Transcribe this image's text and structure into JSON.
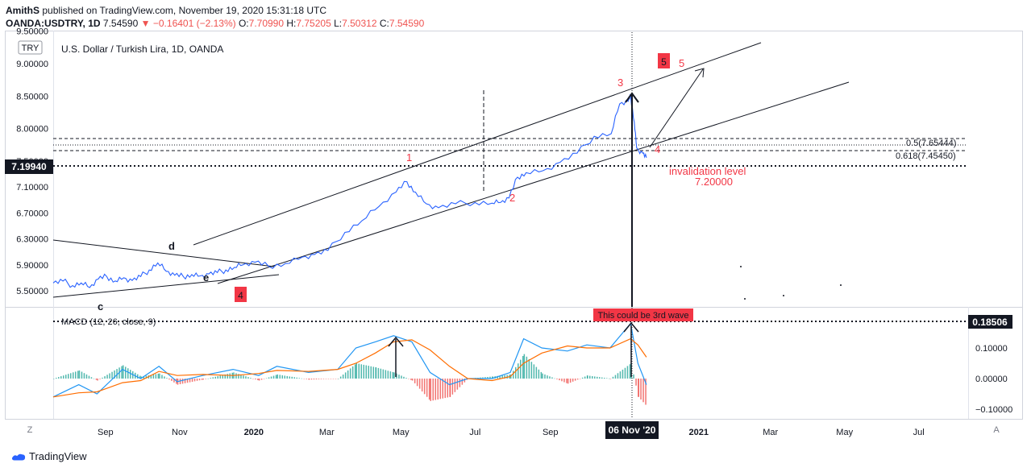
{
  "header": {
    "author": "AmithS",
    "published": "published on TradingView.com, November 19, 2020 15:31:18 UTC",
    "symbol": "OANDA:USDTRY, 1D",
    "last": "7.54590",
    "change": "−0.16401 (−2.13%)",
    "o_label": "O:",
    "o": "7.70990",
    "h_label": "H:",
    "h": "7.75205",
    "l_label": "L:",
    "l": "7.50312",
    "c_label": "C:",
    "c": "7.54590"
  },
  "chart_title": "U.S. Dollar / Turkish Lira, 1D, OANDA",
  "currency_badge": "TRY",
  "footer_brand": "TradingView",
  "colors": {
    "price_line": "#2962ff",
    "macd": "#2196f3",
    "signal": "#ff6d00",
    "wave": "#f23645",
    "hist_up": "#26a69a",
    "hist_dn": "#ef5350"
  },
  "chart_data": [
    {
      "type": "line",
      "series": [
        {
          "name": "",
          "values": []
        }
      ],
      "ylim": [
        5.4,
        9.5
      ],
      "price_ticks": [
        "9.50000",
        "9.00000",
        "8.50000",
        "8.00000",
        "7.50000",
        "7.10000",
        "6.70000",
        "6.30000",
        "5.90000",
        "5.50000"
      ],
      "x_ticks": [
        "Sep",
        "Nov",
        "2020",
        "Mar",
        "May",
        "Jul",
        "Sep",
        "2021",
        "Mar",
        "May",
        "Jul"
      ],
      "crosshair_date": "06 Nov '20",
      "last_price_label": "7.19940",
      "fib_labels": [
        "0.5(7.65444)",
        "0.618(7.45450)"
      ],
      "wave_labels": [
        "1",
        "2",
        "3",
        "4",
        "5"
      ],
      "wave_boxes": [
        "5",
        "4"
      ],
      "triangle_labels": [
        "d",
        "e",
        "c"
      ],
      "invalidation_text": "invalidation level",
      "invalidation_value": "7.20000",
      "points": [
        [
          "2019-07-20",
          5.62
        ],
        [
          "2019-07-28",
          5.65
        ],
        [
          "2019-08-05",
          5.58
        ],
        [
          "2019-08-12",
          5.62
        ],
        [
          "2019-08-19",
          5.55
        ],
        [
          "2019-08-26",
          5.68
        ],
        [
          "2019-09-02",
          5.72
        ],
        [
          "2019-09-09",
          5.65
        ],
        [
          "2019-09-16",
          5.7
        ],
        [
          "2019-09-23",
          5.66
        ],
        [
          "2019-09-30",
          5.72
        ],
        [
          "2019-10-07",
          5.82
        ],
        [
          "2019-10-14",
          5.93
        ],
        [
          "2019-10-21",
          5.8
        ],
        [
          "2019-10-28",
          5.74
        ],
        [
          "2019-11-04",
          5.72
        ],
        [
          "2019-11-11",
          5.75
        ],
        [
          "2019-11-18",
          5.73
        ],
        [
          "2019-11-25",
          5.76
        ],
        [
          "2019-12-02",
          5.78
        ],
        [
          "2019-12-09",
          5.82
        ],
        [
          "2019-12-16",
          5.86
        ],
        [
          "2019-12-23",
          5.9
        ],
        [
          "2020-01-02",
          5.94
        ],
        [
          "2020-01-13",
          5.88
        ],
        [
          "2020-01-27",
          5.92
        ],
        [
          "2020-02-10",
          6.02
        ],
        [
          "2020-02-20",
          6.06
        ],
        [
          "2020-03-02",
          6.12
        ],
        [
          "2020-03-16",
          6.4
        ],
        [
          "2020-03-30",
          6.58
        ],
        [
          "2020-04-13",
          6.8
        ],
        [
          "2020-04-27",
          7.02
        ],
        [
          "2020-05-06",
          7.18
        ],
        [
          "2020-05-13",
          7.02
        ],
        [
          "2020-05-22",
          6.84
        ],
        [
          "2020-06-01",
          6.78
        ],
        [
          "2020-06-15",
          6.84
        ],
        [
          "2020-07-01",
          6.86
        ],
        [
          "2020-07-15",
          6.85
        ],
        [
          "2020-07-22",
          6.86
        ],
        [
          "2020-07-29",
          6.93
        ],
        [
          "2020-08-05",
          7.25
        ],
        [
          "2020-08-12",
          7.32
        ],
        [
          "2020-08-26",
          7.35
        ],
        [
          "2020-09-09",
          7.48
        ],
        [
          "2020-09-23",
          7.62
        ],
        [
          "2020-10-07",
          7.88
        ],
        [
          "2020-10-21",
          7.92
        ],
        [
          "2020-10-28",
          8.38
        ],
        [
          "2020-11-04",
          8.42
        ],
        [
          "2020-11-06",
          8.5
        ],
        [
          "2020-11-09",
          8.1
        ],
        [
          "2020-11-11",
          7.7
        ],
        [
          "2020-11-16",
          7.62
        ],
        [
          "2020-11-19",
          7.55
        ]
      ]
    },
    {
      "type": "line",
      "title": "MACD (12, 26, close, 9)",
      "ylim": [
        -0.12,
        0.2
      ],
      "ticks": [
        "0.18506",
        "0.10000",
        "0.00000",
        "−0.10000"
      ],
      "last_label": "0.18506",
      "annotation": "This could be 3rd wave",
      "series": [
        {
          "name": "MACD",
          "values": []
        },
        {
          "name": "Signal",
          "values": []
        }
      ]
    }
  ],
  "side_labels": {
    "z": "Z",
    "a": "A"
  }
}
